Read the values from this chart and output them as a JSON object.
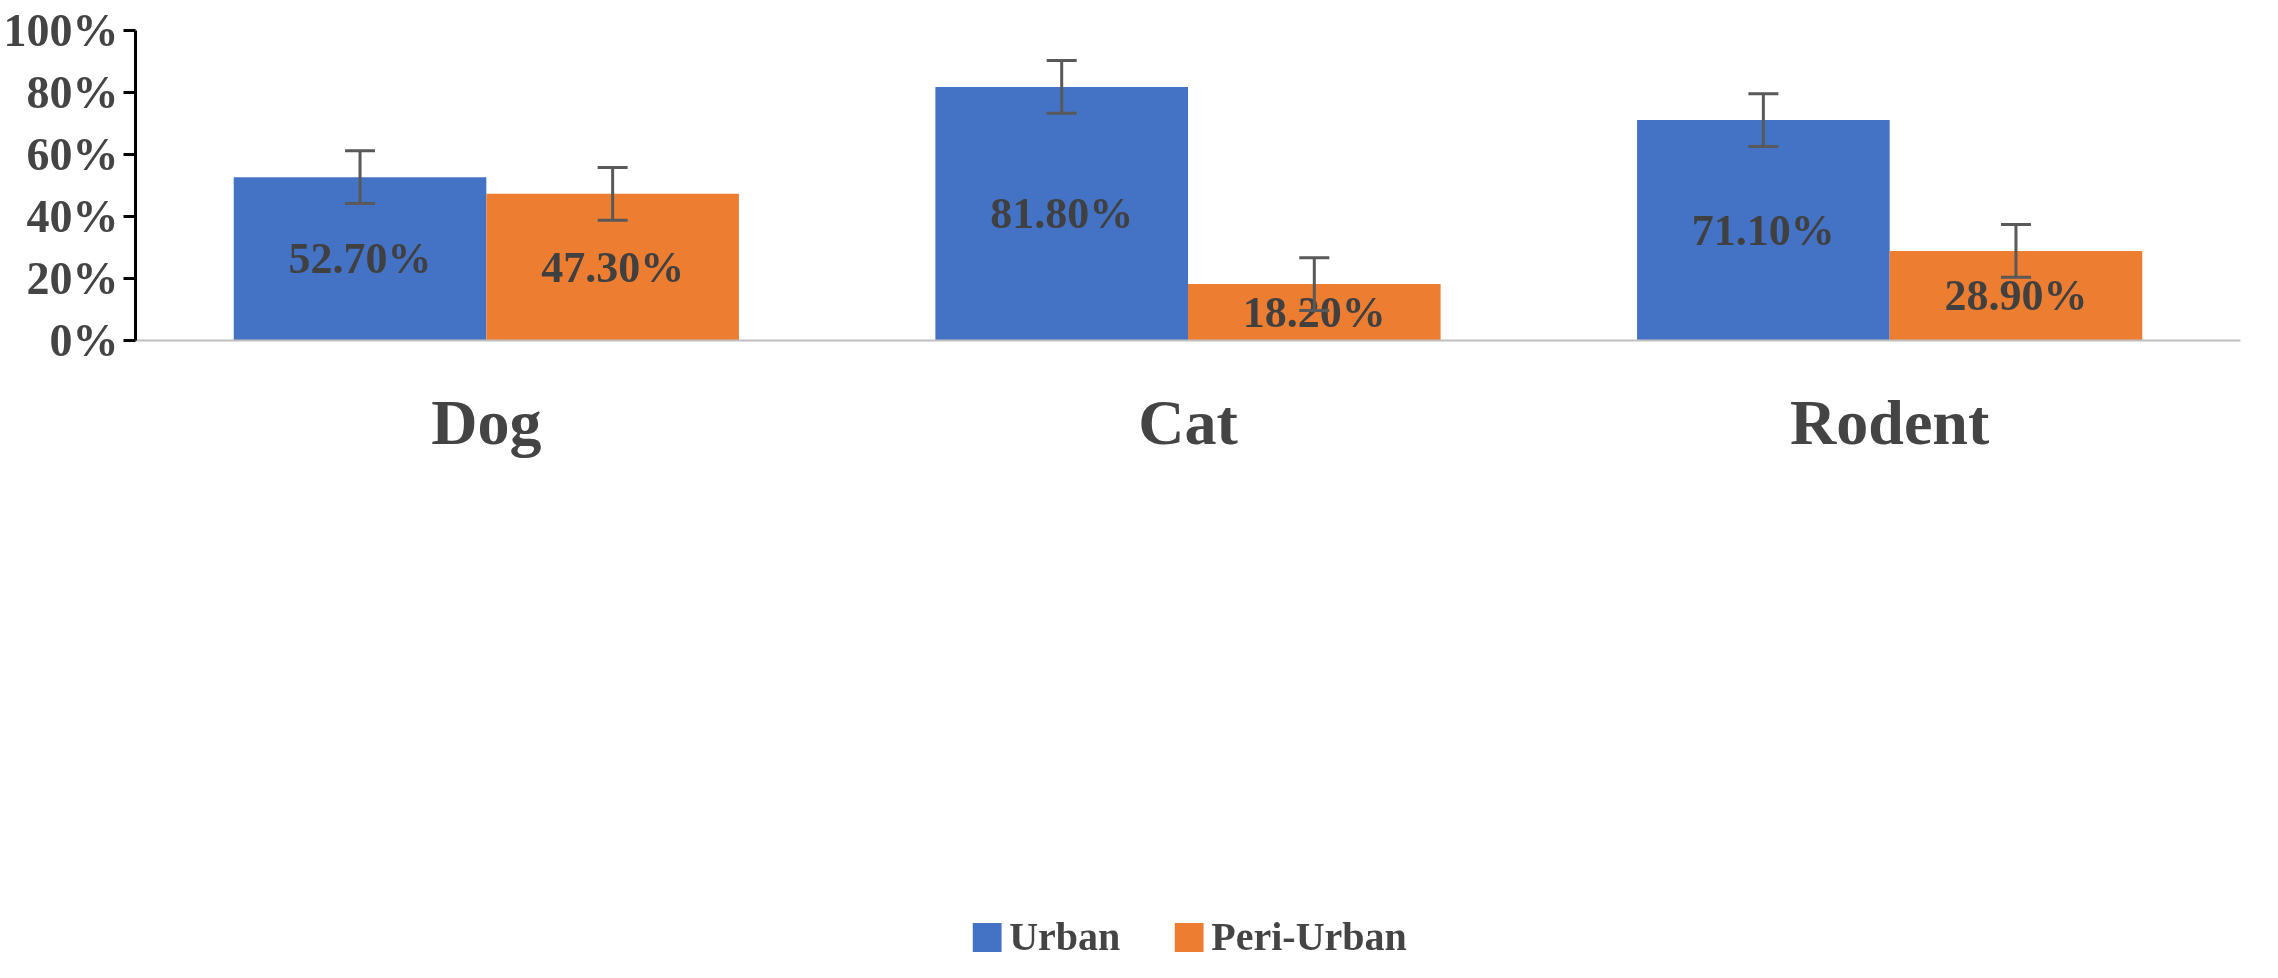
{
  "chart_data": {
    "type": "bar",
    "categories": [
      "Dog",
      "Cat",
      "Rodent"
    ],
    "series": [
      {
        "name": "Urban",
        "color": "#4472c4",
        "values": [
          52.7,
          81.8,
          71.1
        ],
        "errors": [
          8.5,
          8.5,
          8.5
        ],
        "value_labels": [
          "52.70%",
          "81.80%",
          "71.10%"
        ]
      },
      {
        "name": "Peri-Urban",
        "color": "#ed7d31",
        "values": [
          47.3,
          18.2,
          28.9
        ],
        "errors": [
          8.5,
          8.5,
          8.5
        ],
        "value_labels": [
          "47.30%",
          "18.20%",
          "28.90%"
        ]
      }
    ],
    "ylim": [
      0,
      100
    ],
    "yticks": [
      {
        "value": 0,
        "label": "0%"
      },
      {
        "value": 20,
        "label": "20%"
      },
      {
        "value": 40,
        "label": "40%"
      },
      {
        "value": 60,
        "label": "60%"
      },
      {
        "value": 80,
        "label": "80%"
      },
      {
        "value": 100,
        "label": "100%"
      }
    ],
    "grid": false,
    "legend": "bottom"
  }
}
